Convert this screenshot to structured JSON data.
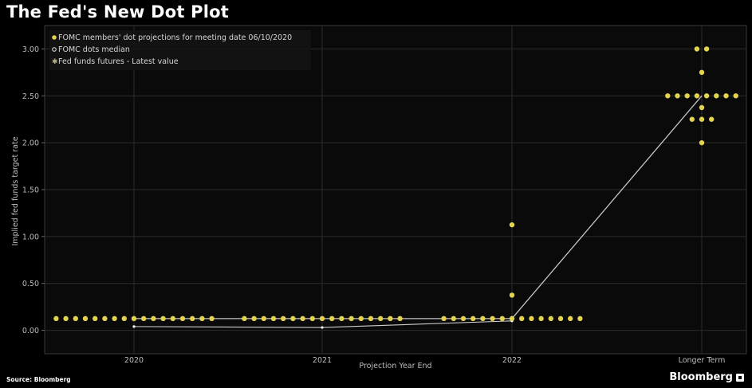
{
  "title": "The Fed's New Dot Plot",
  "source": "Source: Bloomberg",
  "brand": "Bloomberg",
  "colors": {
    "background": "#000000",
    "plot_background": "#0a0a0a",
    "dot": "#e3d44f",
    "median": "#e8e8e8",
    "futures": "#b9b08a",
    "grid": "#2c2c2c",
    "text": "#bdbdbd"
  },
  "chart_data": {
    "type": "scatter",
    "xlabel": "Projection Year End",
    "ylabel": "Implied fed funds target rate",
    "categories": [
      "2020",
      "2021",
      "2022",
      "Longer Term"
    ],
    "ylim": [
      -0.25,
      3.25
    ],
    "yticks": [
      "3.00",
      "2.50",
      "2.00",
      "1.50",
      "1.00",
      "0.50",
      "0.00"
    ],
    "ytick_values": [
      3.0,
      2.5,
      2.0,
      1.5,
      1.0,
      0.5,
      0.0
    ],
    "grid": true,
    "legend_position": "top-left",
    "series": [
      {
        "name": "FOMC members' dot projections for meeting date 06/10/2020",
        "kind": "dots",
        "points": [
          {
            "category": "2020",
            "value": 0.125,
            "count": 17
          },
          {
            "category": "2021",
            "value": 0.125,
            "count": 17
          },
          {
            "category": "2022",
            "value": 0.125,
            "count": 15
          },
          {
            "category": "2022",
            "value": 0.375,
            "count": 1
          },
          {
            "category": "2022",
            "value": 1.125,
            "count": 1
          },
          {
            "category": "Longer Term",
            "value": 2.5,
            "count": 8
          },
          {
            "category": "Longer Term",
            "value": 3.0,
            "count": 2
          },
          {
            "category": "Longer Term",
            "value": 2.75,
            "count": 1
          },
          {
            "category": "Longer Term",
            "value": 2.375,
            "count": 1
          },
          {
            "category": "Longer Term",
            "value": 2.25,
            "count": 3
          },
          {
            "category": "Longer Term",
            "value": 2.0,
            "count": 1
          }
        ]
      },
      {
        "name": "FOMC dots median",
        "kind": "line",
        "points": [
          {
            "category": "2020",
            "value": 0.125
          },
          {
            "category": "2021",
            "value": 0.125
          },
          {
            "category": "2022",
            "value": 0.125
          },
          {
            "category": "Longer Term",
            "value": 2.5
          }
        ]
      },
      {
        "name": "Fed funds futures - Latest value",
        "kind": "line",
        "points": [
          {
            "category": "2020",
            "value": 0.04
          },
          {
            "category": "2021",
            "value": 0.03
          },
          {
            "category": "2022",
            "value": 0.1
          }
        ]
      }
    ]
  }
}
